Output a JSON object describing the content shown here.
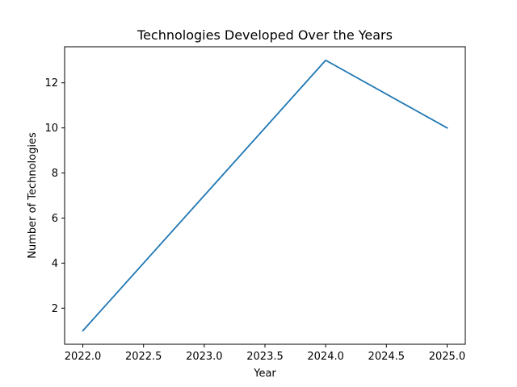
{
  "chart_data": {
    "type": "line",
    "title": "Technologies Developed Over the Years",
    "xlabel": "Year",
    "ylabel": "Number of Technologies",
    "xlim": [
      2021.85,
      2025.15
    ],
    "ylim": [
      0.4,
      13.6
    ],
    "x_ticks": [
      "2022.0",
      "2022.5",
      "2023.0",
      "2023.5",
      "2024.0",
      "2024.5",
      "2025.0"
    ],
    "y_ticks": [
      "2",
      "4",
      "6",
      "8",
      "10",
      "12"
    ],
    "grid": false,
    "legend": "none",
    "series": [
      {
        "color": "#1f77b4",
        "x": [
          2022,
          2023,
          2024,
          2025
        ],
        "y": [
          1,
          7,
          13,
          10
        ]
      }
    ]
  }
}
